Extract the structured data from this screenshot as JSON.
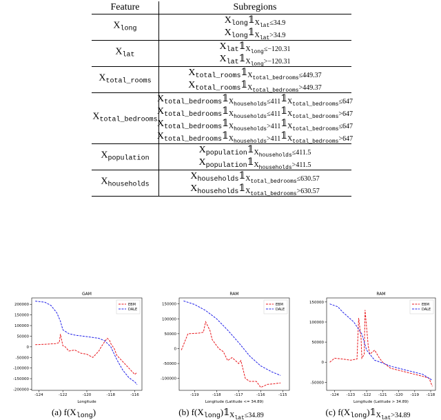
{
  "table": {
    "header": [
      "Feature",
      "Subregions"
    ],
    "rows": [
      {
        "feature": [
          {
            "t": "X"
          },
          {
            "s": "long"
          }
        ],
        "subregions": [
          [
            {
              "t": "X"
            },
            {
              "s": "long"
            },
            {
              "t": "𝟙"
            },
            {
              "s": "X"
            },
            {
              "ss": "lat"
            },
            {
              "s": "≤34.9"
            }
          ],
          [
            {
              "t": "X"
            },
            {
              "s": "long"
            },
            {
              "t": "𝟙"
            },
            {
              "s": "X"
            },
            {
              "ss": "lat"
            },
            {
              "s": ">34.9"
            }
          ]
        ]
      },
      {
        "feature": [
          {
            "t": "X"
          },
          {
            "s": "lat"
          }
        ],
        "subregions": [
          [
            {
              "t": "X"
            },
            {
              "s": "lat"
            },
            {
              "t": "𝟙"
            },
            {
              "s": "X"
            },
            {
              "ss": "long"
            },
            {
              "s": "≤−120.31"
            }
          ],
          [
            {
              "t": "X"
            },
            {
              "s": "lat"
            },
            {
              "t": "𝟙"
            },
            {
              "s": "X"
            },
            {
              "ss": "long"
            },
            {
              "s": ">−120.31"
            }
          ]
        ]
      },
      {
        "feature": [
          {
            "t": "X"
          },
          {
            "s": "total_rooms"
          }
        ],
        "subregions": [
          [
            {
              "t": "X"
            },
            {
              "s": "total_rooms"
            },
            {
              "t": "𝟙"
            },
            {
              "s": "X"
            },
            {
              "ss": "total_bedrooms"
            },
            {
              "s": "≤449.37"
            }
          ],
          [
            {
              "t": "X"
            },
            {
              "s": "total_rooms"
            },
            {
              "t": "𝟙"
            },
            {
              "s": "X"
            },
            {
              "ss": "total_bedrooms"
            },
            {
              "s": ">449.37"
            }
          ]
        ]
      },
      {
        "feature": [
          {
            "t": "X"
          },
          {
            "s": "total_bedrooms"
          }
        ],
        "subregions": [
          [
            {
              "t": "X"
            },
            {
              "s": "total_bedrooms"
            },
            {
              "t": "𝟙"
            },
            {
              "s": "X"
            },
            {
              "ss": "households"
            },
            {
              "s": "≤411"
            },
            {
              "t": "𝟙"
            },
            {
              "s": "X"
            },
            {
              "ss": "total_bedrooms"
            },
            {
              "s": "≤647"
            }
          ],
          [
            {
              "t": "X"
            },
            {
              "s": "total_bedrooms"
            },
            {
              "t": "𝟙"
            },
            {
              "s": "X"
            },
            {
              "ss": "households"
            },
            {
              "s": "≤411"
            },
            {
              "t": "𝟙"
            },
            {
              "s": "X"
            },
            {
              "ss": "total_bedrooms"
            },
            {
              "s": ">647"
            }
          ],
          [
            {
              "t": "X"
            },
            {
              "s": "total_bedrooms"
            },
            {
              "t": "𝟙"
            },
            {
              "s": "X"
            },
            {
              "ss": "households"
            },
            {
              "s": ">411"
            },
            {
              "t": "𝟙"
            },
            {
              "s": "X"
            },
            {
              "ss": "total_bedrooms"
            },
            {
              "s": "≤647"
            }
          ],
          [
            {
              "t": "X"
            },
            {
              "s": "total_bedrooms"
            },
            {
              "t": "𝟙"
            },
            {
              "s": "X"
            },
            {
              "ss": "households"
            },
            {
              "s": ">411"
            },
            {
              "t": "𝟙"
            },
            {
              "s": "X"
            },
            {
              "ss": "total_bedrooms"
            },
            {
              "s": ">647"
            }
          ]
        ]
      },
      {
        "feature": [
          {
            "t": "X"
          },
          {
            "s": "population"
          }
        ],
        "subregions": [
          [
            {
              "t": "X"
            },
            {
              "s": "population"
            },
            {
              "t": "𝟙"
            },
            {
              "s": "X"
            },
            {
              "ss": "households"
            },
            {
              "s": "≤411.5"
            }
          ],
          [
            {
              "t": "X"
            },
            {
              "s": "population"
            },
            {
              "t": "𝟙"
            },
            {
              "s": "X"
            },
            {
              "ss": "households"
            },
            {
              "s": ">411.5"
            }
          ]
        ]
      },
      {
        "feature": [
          {
            "t": "X"
          },
          {
            "s": "households"
          }
        ],
        "subregions": [
          [
            {
              "t": "X"
            },
            {
              "s": "households"
            },
            {
              "t": "𝟙"
            },
            {
              "s": "X"
            },
            {
              "ss": "total_bedrooms"
            },
            {
              "s": "≤630.57"
            }
          ],
          [
            {
              "t": "X"
            },
            {
              "s": "households"
            },
            {
              "t": "𝟙"
            },
            {
              "s": "X"
            },
            {
              "ss": "total_bedrooms"
            },
            {
              "s": ">630.57"
            }
          ]
        ]
      }
    ]
  },
  "chart_data": [
    {
      "type": "line",
      "title": "GAM",
      "x_label": "Longitude",
      "xlim": [
        -124.6,
        -115.4
      ],
      "xticks": [
        -124,
        -122,
        -120,
        -118,
        -116
      ],
      "ylim": [
        -205000,
        230000
      ],
      "yticks": [
        -200000,
        -150000,
        -100000,
        -50000,
        0,
        50000,
        100000,
        150000,
        200000
      ],
      "legend": "upper right",
      "series": [
        {
          "name": "EBM",
          "color": "#e8161b",
          "x": [
            -124.3,
            -123.5,
            -122.6,
            -122.3,
            -122.2,
            -122.0,
            -121.8,
            -121.5,
            -121.0,
            -120.5,
            -120.0,
            -119.5,
            -119.0,
            -118.8,
            -118.5,
            -118.3,
            -118.1,
            -118.0,
            -117.7,
            -117.5,
            -117.0,
            -116.5,
            -116.0,
            -115.8
          ],
          "values": [
            10000,
            12000,
            15000,
            20000,
            60000,
            5000,
            0,
            -20000,
            -15000,
            -30000,
            -35000,
            -50000,
            -20000,
            0,
            25000,
            40000,
            30000,
            15000,
            -10000,
            -40000,
            -70000,
            -100000,
            -130000,
            -120000
          ]
        },
        {
          "name": "DALE",
          "color": "#1f1fe8",
          "x": [
            -124.3,
            -123.5,
            -123.0,
            -122.5,
            -122.2,
            -122.0,
            -121.5,
            -121.0,
            -120.0,
            -119.0,
            -118.5,
            -118.0,
            -117.5,
            -117.0,
            -116.5,
            -116.0,
            -115.8
          ],
          "values": [
            215000,
            210000,
            195000,
            160000,
            120000,
            80000,
            62000,
            55000,
            48000,
            40000,
            28000,
            0,
            -60000,
            -110000,
            -145000,
            -165000,
            -178000
          ]
        }
      ]
    },
    {
      "type": "line",
      "title": "RAM",
      "x_label": "Longitude (Latitude <= 34.89)",
      "xlim": [
        -119.7,
        -114.7
      ],
      "xticks": [
        -119,
        -118,
        -117,
        -116,
        -115
      ],
      "ylim": [
        -140000,
        170000
      ],
      "yticks": [
        -100000,
        -50000,
        0,
        50000,
        100000,
        150000
      ],
      "legend": "upper right",
      "series": [
        {
          "name": "EBM",
          "color": "#e8161b",
          "x": [
            -119.6,
            -119.3,
            -118.8,
            -118.6,
            -118.5,
            -118.3,
            -118.2,
            -118.0,
            -117.9,
            -117.7,
            -117.5,
            -117.3,
            -117.0,
            -116.9,
            -116.7,
            -116.5,
            -116.2,
            -116.0,
            -115.7,
            -115.4,
            -115.1
          ],
          "values": [
            -5000,
            50000,
            52000,
            55000,
            90000,
            60000,
            30000,
            10000,
            0,
            -10000,
            -40000,
            -30000,
            -50000,
            -40000,
            -100000,
            -110000,
            -110000,
            -130000,
            -120000,
            -118000,
            -115000
          ]
        },
        {
          "name": "DALE",
          "color": "#1f1fe8",
          "x": [
            -119.5,
            -119.0,
            -118.5,
            -118.0,
            -117.5,
            -117.0,
            -116.5,
            -116.0,
            -115.5,
            -115.1
          ],
          "values": [
            160000,
            148000,
            128000,
            100000,
            62000,
            20000,
            -25000,
            -58000,
            -78000,
            -90000
          ]
        }
      ]
    },
    {
      "type": "line",
      "title": "RAM",
      "x_label": "Longitude (Latitude > 34.89)",
      "xlim": [
        -124.5,
        -117.7
      ],
      "xticks": [
        -124,
        -123,
        -122,
        -121,
        -120,
        -119,
        -118
      ],
      "ylim": [
        -70000,
        160000
      ],
      "yticks": [
        -50000,
        0,
        50000,
        100000,
        150000
      ],
      "legend": "upper right",
      "series": [
        {
          "name": "EBM",
          "color": "#e8161b",
          "x": [
            -124.3,
            -124.0,
            -123.5,
            -123.0,
            -122.6,
            -122.5,
            -122.35,
            -122.3,
            -122.15,
            -122.1,
            -121.9,
            -121.8,
            -121.5,
            -121.2,
            -121.0,
            -120.5,
            -120.0,
            -119.5,
            -119.0,
            -118.5,
            -118.1,
            -117.9
          ],
          "values": [
            0,
            10000,
            8000,
            5000,
            8000,
            110000,
            60000,
            10000,
            20000,
            130000,
            40000,
            20000,
            30000,
            10000,
            0,
            -15000,
            -20000,
            -25000,
            -30000,
            -35000,
            -40000,
            -60000
          ]
        },
        {
          "name": "DALE",
          "color": "#1f1fe8",
          "x": [
            -124.3,
            -123.8,
            -123.5,
            -122.8,
            -122.3,
            -122.0,
            -121.5,
            -121.0,
            -120.5,
            -119.5,
            -118.5,
            -117.9
          ],
          "values": [
            145000,
            138000,
            125000,
            100000,
            70000,
            30000,
            5000,
            -2000,
            -10000,
            -20000,
            -30000,
            -45000
          ]
        }
      ]
    }
  ],
  "captions": [
    [
      {
        "t": "(a) "
      },
      {
        "t": "f(X"
      },
      {
        "s": "long"
      },
      {
        "t": ")"
      }
    ],
    [
      {
        "t": "(b) "
      },
      {
        "t": "f(X"
      },
      {
        "s": "long"
      },
      {
        "t": ")𝟙"
      },
      {
        "s": "X"
      },
      {
        "ss": "lat"
      },
      {
        "s": "≤34.89"
      }
    ],
    [
      {
        "t": "(c) "
      },
      {
        "t": "f(X"
      },
      {
        "s": "long"
      },
      {
        "t": ")𝟙"
      },
      {
        "s": "X"
      },
      {
        "ss": "lat"
      },
      {
        "s": ">34.89"
      }
    ]
  ]
}
